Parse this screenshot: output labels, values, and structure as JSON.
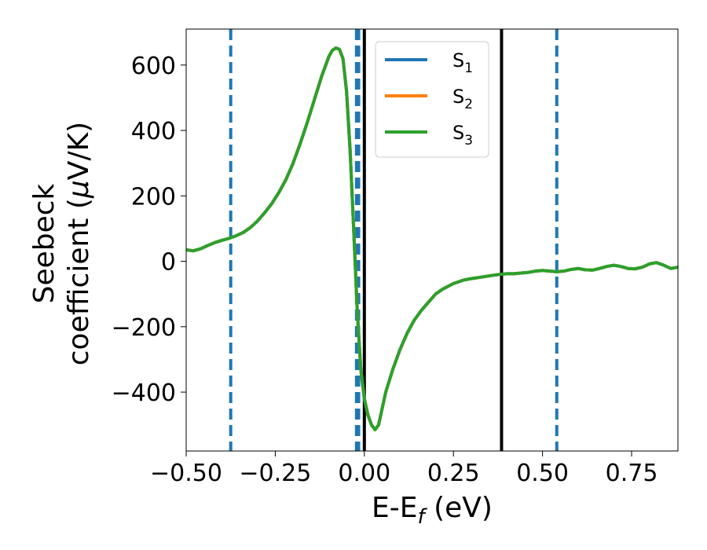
{
  "chart_data": {
    "type": "line",
    "xlabel_main": "E-E",
    "xlabel_sub": "f",
    "xlabel_unit": " (eV)",
    "ylabel_line1": "Seebeck",
    "ylabel_line2_pre": "coefficient  (",
    "ylabel_line2_mu": "μ",
    "ylabel_line2_post": "V/K)",
    "xlim": [
      -0.5,
      0.88
    ],
    "ylim": [
      -580,
      710
    ],
    "xticks": [
      -0.5,
      -0.25,
      0.0,
      0.25,
      0.5,
      0.75
    ],
    "xtick_labels": [
      "−0.50",
      "−0.25",
      "0.00",
      "0.25",
      "0.50",
      "0.75"
    ],
    "yticks": [
      -400,
      -200,
      0,
      200,
      400,
      600
    ],
    "ytick_labels": [
      "−400",
      "−200",
      "0",
      "200",
      "400",
      "600"
    ],
    "legend_position": "top-center",
    "series": [
      {
        "name": "S",
        "sub": "1",
        "color": "#1f77b4",
        "x": [
          -0.5,
          -0.48,
          -0.46,
          -0.44,
          -0.42,
          -0.4,
          -0.38,
          -0.36,
          -0.34,
          -0.32,
          -0.3,
          -0.28,
          -0.26,
          -0.24,
          -0.22,
          -0.2,
          -0.18,
          -0.16,
          -0.14,
          -0.12,
          -0.1,
          -0.09,
          -0.08,
          -0.07,
          -0.06,
          -0.05,
          -0.04,
          -0.03,
          -0.02,
          -0.01,
          0.0,
          0.01,
          0.02,
          0.03,
          0.04,
          0.05,
          0.06,
          0.08,
          0.1,
          0.12,
          0.14,
          0.16,
          0.18,
          0.2,
          0.22,
          0.25,
          0.28,
          0.3,
          0.33,
          0.36,
          0.38,
          0.4,
          0.42,
          0.44,
          0.46,
          0.48,
          0.5,
          0.52,
          0.54,
          0.56,
          0.58,
          0.6,
          0.62,
          0.64,
          0.66,
          0.68,
          0.7,
          0.72,
          0.74,
          0.76,
          0.78,
          0.8,
          0.82,
          0.84,
          0.86,
          0.88
        ],
        "y": [
          35,
          32,
          38,
          48,
          57,
          64,
          70,
          78,
          88,
          103,
          123,
          148,
          176,
          210,
          250,
          300,
          360,
          425,
          495,
          565,
          625,
          645,
          652,
          648,
          620,
          520,
          340,
          100,
          -150,
          -330,
          -420,
          -470,
          -500,
          -515,
          -500,
          -450,
          -400,
          -330,
          -270,
          -220,
          -180,
          -150,
          -125,
          -100,
          -85,
          -68,
          -57,
          -53,
          -48,
          -43,
          -40,
          -38,
          -38,
          -36,
          -34,
          -30,
          -28,
          -30,
          -32,
          -30,
          -25,
          -22,
          -26,
          -27,
          -22,
          -16,
          -12,
          -16,
          -22,
          -23,
          -18,
          -8,
          -4,
          -12,
          -22,
          -18
        ]
      },
      {
        "name": "S",
        "sub": "2",
        "color": "#ff7f0e",
        "x": [
          -0.5,
          -0.48,
          -0.46,
          -0.44,
          -0.42,
          -0.4,
          -0.38,
          -0.36,
          -0.34,
          -0.32,
          -0.3,
          -0.28,
          -0.26,
          -0.24,
          -0.22,
          -0.2,
          -0.18,
          -0.16,
          -0.14,
          -0.12,
          -0.1,
          -0.09,
          -0.08,
          -0.07,
          -0.06,
          -0.05,
          -0.04,
          -0.03,
          -0.02,
          -0.01,
          0.0,
          0.01,
          0.02,
          0.03,
          0.04,
          0.05,
          0.06,
          0.08,
          0.1,
          0.12,
          0.14,
          0.16,
          0.18,
          0.2,
          0.22,
          0.25,
          0.28,
          0.3,
          0.33,
          0.36,
          0.38,
          0.4,
          0.42,
          0.44,
          0.46,
          0.48,
          0.5,
          0.52,
          0.54,
          0.56,
          0.58,
          0.6,
          0.62,
          0.64,
          0.66,
          0.68,
          0.7,
          0.72,
          0.74,
          0.76,
          0.78,
          0.8,
          0.82,
          0.84,
          0.86,
          0.88
        ],
        "y": [
          35,
          32,
          38,
          48,
          57,
          64,
          70,
          78,
          88,
          103,
          123,
          148,
          176,
          210,
          250,
          300,
          360,
          425,
          495,
          565,
          625,
          645,
          652,
          648,
          620,
          520,
          340,
          100,
          -150,
          -330,
          -420,
          -470,
          -500,
          -515,
          -500,
          -450,
          -400,
          -330,
          -270,
          -220,
          -180,
          -150,
          -125,
          -100,
          -85,
          -68,
          -57,
          -53,
          -48,
          -43,
          -40,
          -38,
          -38,
          -36,
          -34,
          -30,
          -28,
          -30,
          -32,
          -30,
          -25,
          -22,
          -26,
          -27,
          -22,
          -16,
          -12,
          -16,
          -22,
          -23,
          -18,
          -8,
          -4,
          -12,
          -22,
          -18
        ]
      },
      {
        "name": "S",
        "sub": "3",
        "color": "#2ca02c",
        "x": [
          -0.5,
          -0.48,
          -0.46,
          -0.44,
          -0.42,
          -0.4,
          -0.38,
          -0.36,
          -0.34,
          -0.32,
          -0.3,
          -0.28,
          -0.26,
          -0.24,
          -0.22,
          -0.2,
          -0.18,
          -0.16,
          -0.14,
          -0.12,
          -0.1,
          -0.09,
          -0.08,
          -0.07,
          -0.06,
          -0.05,
          -0.04,
          -0.03,
          -0.02,
          -0.01,
          0.0,
          0.01,
          0.02,
          0.03,
          0.04,
          0.05,
          0.06,
          0.08,
          0.1,
          0.12,
          0.14,
          0.16,
          0.18,
          0.2,
          0.22,
          0.25,
          0.28,
          0.3,
          0.33,
          0.36,
          0.38,
          0.4,
          0.42,
          0.44,
          0.46,
          0.48,
          0.5,
          0.52,
          0.54,
          0.56,
          0.58,
          0.6,
          0.62,
          0.64,
          0.66,
          0.68,
          0.7,
          0.72,
          0.74,
          0.76,
          0.78,
          0.8,
          0.82,
          0.84,
          0.86,
          0.88
        ],
        "y": [
          35,
          32,
          38,
          48,
          57,
          64,
          70,
          78,
          88,
          103,
          123,
          148,
          176,
          210,
          250,
          300,
          360,
          425,
          495,
          565,
          625,
          645,
          652,
          648,
          620,
          520,
          340,
          100,
          -150,
          -330,
          -420,
          -470,
          -500,
          -515,
          -500,
          -450,
          -400,
          -330,
          -270,
          -220,
          -180,
          -150,
          -125,
          -100,
          -85,
          -68,
          -57,
          -53,
          -48,
          -43,
          -40,
          -38,
          -38,
          -36,
          -34,
          -30,
          -28,
          -30,
          -32,
          -30,
          -25,
          -22,
          -26,
          -27,
          -22,
          -16,
          -12,
          -16,
          -22,
          -23,
          -18,
          -8,
          -4,
          -12,
          -22,
          -18
        ]
      }
    ],
    "vlines": [
      {
        "x": -0.375,
        "style": "dashed",
        "color": "#1f77b4"
      },
      {
        "x": -0.022,
        "style": "dashed",
        "color": "#1f77b4"
      },
      {
        "x": -0.016,
        "style": "dashed",
        "color": "#1f77b4"
      },
      {
        "x": 0.0,
        "style": "solid",
        "color": "#000000"
      },
      {
        "x": 0.385,
        "style": "solid",
        "color": "#000000"
      },
      {
        "x": 0.54,
        "style": "dashed",
        "color": "#1f77b4"
      }
    ]
  }
}
